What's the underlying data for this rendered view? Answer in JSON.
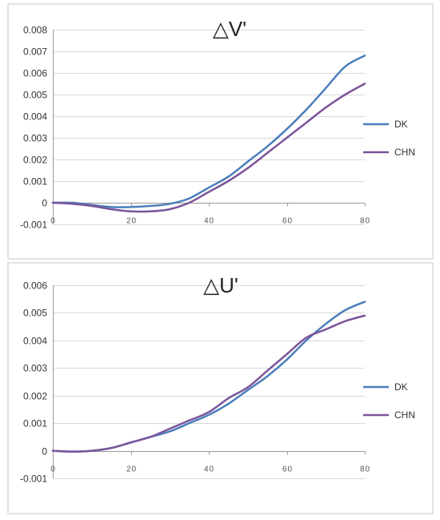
{
  "chart_data": [
    {
      "type": "line",
      "title": "△V'",
      "xlabel": "",
      "ylabel": "",
      "xlim": [
        0,
        80
      ],
      "ylim": [
        -0.001,
        0.008
      ],
      "xticks": [
        0,
        20,
        40,
        60,
        80
      ],
      "xtick_labels": [
        "0",
        "20",
        "40",
        "60",
        "80"
      ],
      "yticks": [
        -0.001,
        0,
        0.001,
        0.002,
        0.003,
        0.004,
        0.005,
        0.006,
        0.007,
        0.008
      ],
      "ytick_labels": [
        "-0.001",
        "0",
        "0.001",
        "0.002",
        "0.003",
        "0.004",
        "0.005",
        "0.006",
        "0.007",
        "0.008"
      ],
      "grid": true,
      "legend_position": "right",
      "x": [
        0,
        5,
        10,
        15,
        20,
        25,
        30,
        35,
        40,
        45,
        50,
        55,
        60,
        65,
        70,
        75,
        80
      ],
      "series": [
        {
          "name": "DK",
          "color": "#4a7ebb",
          "values": [
            0.0,
            0.0,
            -0.0001,
            -0.0002,
            -0.0002,
            -0.00015,
            -5e-05,
            0.0002,
            0.0007,
            0.0012,
            0.0019,
            0.0026,
            0.0034,
            0.0043,
            0.0053,
            0.0063,
            0.0068
          ]
        },
        {
          "name": "CHN",
          "color": "#7b559b",
          "values": [
            0.0,
            -5e-05,
            -0.00015,
            -0.0003,
            -0.0004,
            -0.0004,
            -0.0003,
            0.0,
            0.0005,
            0.001,
            0.0016,
            0.0023,
            0.003,
            0.0037,
            0.0044,
            0.005,
            0.0055
          ]
        }
      ]
    },
    {
      "type": "line",
      "title": "△U'",
      "xlabel": "",
      "ylabel": "",
      "xlim": [
        0,
        80
      ],
      "ylim": [
        -0.001,
        0.006
      ],
      "xticks": [
        0,
        20,
        40,
        60,
        80
      ],
      "xtick_labels": [
        "0",
        "20",
        "40",
        "60",
        "80"
      ],
      "yticks": [
        -0.001,
        0,
        0.001,
        0.002,
        0.003,
        0.004,
        0.005,
        0.006
      ],
      "ytick_labels": [
        "-0.001",
        "0",
        "0.001",
        "0.002",
        "0.003",
        "0.004",
        "0.005",
        "0.006"
      ],
      "grid": true,
      "legend_position": "right",
      "x": [
        0,
        5,
        10,
        15,
        20,
        25,
        30,
        35,
        40,
        45,
        50,
        55,
        60,
        65,
        70,
        75,
        80
      ],
      "series": [
        {
          "name": "DK",
          "color": "#4a7ebb",
          "values": [
            0.0,
            -3e-05,
            0.0,
            0.0001,
            0.0003,
            0.0005,
            0.0007,
            0.001,
            0.0013,
            0.0017,
            0.0022,
            0.0027,
            0.0033,
            0.004,
            0.0046,
            0.0051,
            0.0054
          ]
        },
        {
          "name": "CHN",
          "color": "#7b559b",
          "values": [
            0.0,
            -3e-05,
            0.0,
            0.0001,
            0.0003,
            0.0005,
            0.0008,
            0.0011,
            0.0014,
            0.0019,
            0.0023,
            0.0029,
            0.0035,
            0.0041,
            0.0044,
            0.0047,
            0.0049
          ]
        }
      ]
    }
  ]
}
